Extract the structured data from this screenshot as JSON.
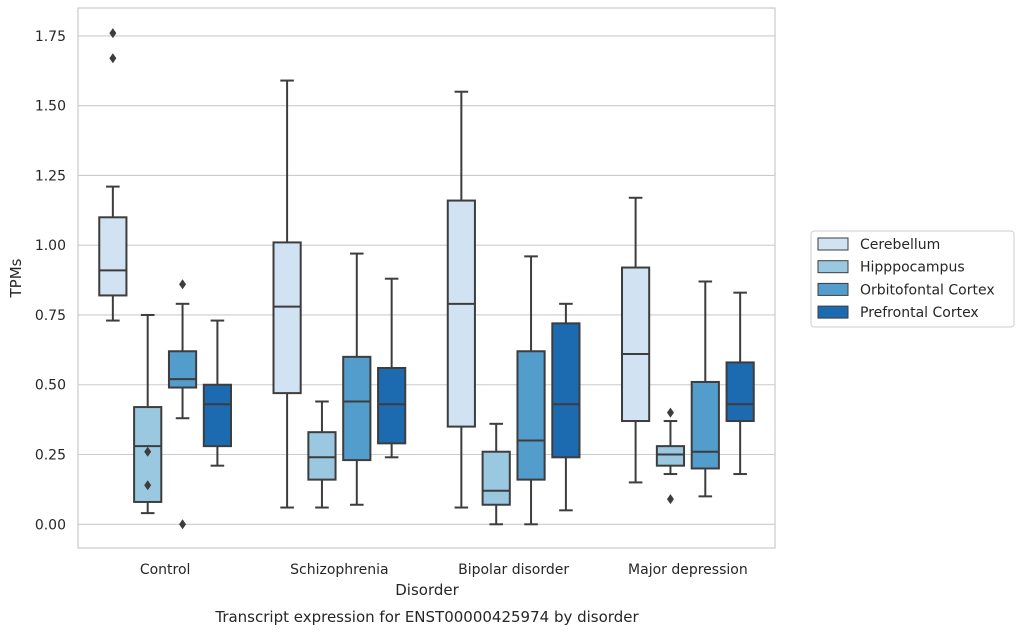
{
  "chart_data": {
    "type": "box",
    "title": "Transcript expression for ENST00000425974 by disorder",
    "xlabel": "Disorder",
    "ylabel": "TPMs",
    "ylim": [
      -0.085,
      1.85
    ],
    "yticks": [
      "0.00",
      "0.25",
      "0.50",
      "0.75",
      "1.00",
      "1.25",
      "1.50",
      "1.75"
    ],
    "ytick_values": [
      0,
      0.25,
      0.5,
      0.75,
      1.0,
      1.25,
      1.5,
      1.75
    ],
    "grid": "horizontal",
    "legend_placement": "right",
    "categories": [
      "Control",
      "Schizophrenia",
      "Bipolar disorder",
      "Major depression"
    ],
    "series": [
      {
        "name": "Cerebellum",
        "color": "#d1e2f2",
        "boxes": [
          {
            "whislo": 0.73,
            "q1": 0.82,
            "med": 0.91,
            "q3": 1.1,
            "whishi": 1.21,
            "fliers": [
              1.67,
              1.76
            ]
          },
          {
            "whislo": 0.06,
            "q1": 0.47,
            "med": 0.78,
            "q3": 1.01,
            "whishi": 1.59,
            "fliers": []
          },
          {
            "whislo": 0.06,
            "q1": 0.35,
            "med": 0.79,
            "q3": 1.16,
            "whishi": 1.55,
            "fliers": []
          },
          {
            "whislo": 0.15,
            "q1": 0.37,
            "med": 0.61,
            "q3": 0.92,
            "whishi": 1.17,
            "fliers": []
          }
        ]
      },
      {
        "name": "Hipppocampus",
        "color": "#9ac8e0",
        "boxes": [
          {
            "whislo": 0.04,
            "q1": 0.08,
            "med": 0.28,
            "q3": 0.42,
            "whishi": 0.75,
            "fliers": [
              0.14,
              0.26
            ]
          },
          {
            "whislo": 0.06,
            "q1": 0.16,
            "med": 0.24,
            "q3": 0.33,
            "whishi": 0.44,
            "fliers": []
          },
          {
            "whislo": 0.0,
            "q1": 0.07,
            "med": 0.12,
            "q3": 0.26,
            "whishi": 0.36,
            "fliers": []
          },
          {
            "whislo": 0.18,
            "q1": 0.21,
            "med": 0.25,
            "q3": 0.28,
            "whishi": 0.37,
            "fliers": [
              0.09,
              0.4
            ]
          }
        ]
      },
      {
        "name": "Orbitofontal Cortex",
        "color": "#529dcc",
        "boxes": [
          {
            "whislo": 0.38,
            "q1": 0.49,
            "med": 0.52,
            "q3": 0.62,
            "whishi": 0.79,
            "fliers": [
              0.0,
              0.86
            ]
          },
          {
            "whislo": 0.07,
            "q1": 0.23,
            "med": 0.44,
            "q3": 0.6,
            "whishi": 0.97,
            "fliers": []
          },
          {
            "whislo": 0.0,
            "q1": 0.16,
            "med": 0.3,
            "q3": 0.62,
            "whishi": 0.96,
            "fliers": []
          },
          {
            "whislo": 0.1,
            "q1": 0.2,
            "med": 0.26,
            "q3": 0.51,
            "whishi": 0.87,
            "fliers": []
          }
        ]
      },
      {
        "name": "Prefrontal Cortex",
        "color": "#1c6aaf",
        "boxes": [
          {
            "whislo": 0.21,
            "q1": 0.28,
            "med": 0.43,
            "q3": 0.5,
            "whishi": 0.73,
            "fliers": []
          },
          {
            "whislo": 0.24,
            "q1": 0.29,
            "med": 0.43,
            "q3": 0.56,
            "whishi": 0.88,
            "fliers": []
          },
          {
            "whislo": 0.05,
            "q1": 0.24,
            "med": 0.43,
            "q3": 0.72,
            "whishi": 0.79,
            "fliers": []
          },
          {
            "whislo": 0.18,
            "q1": 0.37,
            "med": 0.43,
            "q3": 0.58,
            "whishi": 0.83,
            "fliers": []
          }
        ]
      }
    ]
  }
}
